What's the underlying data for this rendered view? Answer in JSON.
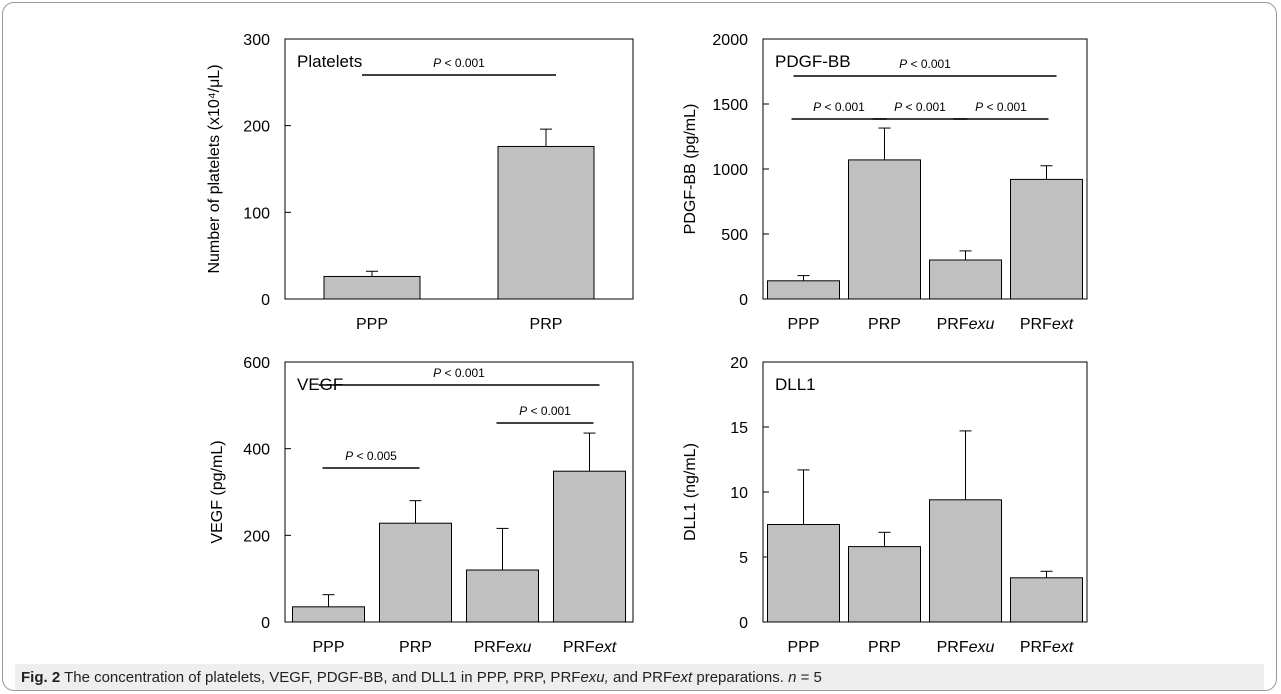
{
  "chart_data": [
    {
      "type": "bar",
      "panel_label": "Platelets",
      "ylabel": "Number of platelets (x10⁴/μL)",
      "categories": [
        "PPP",
        "PRP"
      ],
      "values": [
        26,
        176
      ],
      "errors": [
        6,
        20
      ],
      "ylim": [
        0,
        300
      ],
      "yticks": [
        0,
        100,
        200,
        300
      ],
      "grid": false,
      "bar_color": "#c0c0c0",
      "significance": [
        {
          "from": 0,
          "to": 1,
          "label": "P < 0.001"
        }
      ]
    },
    {
      "type": "bar",
      "panel_label": "PDGF-BB",
      "ylabel": "PDGF-BB (pg/mL)",
      "categories": [
        "PPP",
        "PRP",
        "PRFexu",
        "PRFext"
      ],
      "values": [
        140,
        1070,
        300,
        920
      ],
      "errors": [
        40,
        245,
        70,
        105
      ],
      "ylim": [
        0,
        2000
      ],
      "yticks": [
        0,
        500,
        1000,
        1500,
        2000
      ],
      "grid": false,
      "bar_color": "#c0c0c0",
      "significance": [
        {
          "from": 0,
          "to": 3,
          "label": "P < 0.001"
        },
        {
          "from": 0,
          "to": 1,
          "label": "P < 0.001"
        },
        {
          "from": 1,
          "to": 2,
          "label": "P < 0.001"
        },
        {
          "from": 2,
          "to": 3,
          "label": "P < 0.001"
        }
      ]
    },
    {
      "type": "bar",
      "panel_label": "VEGF",
      "ylabel": "VEGF (pg/mL)",
      "categories": [
        "PPP",
        "PRP",
        "PRFexu",
        "PRFext"
      ],
      "values": [
        35,
        228,
        120,
        348
      ],
      "errors": [
        28,
        52,
        96,
        88
      ],
      "ylim": [
        0,
        600
      ],
      "yticks": [
        0,
        200,
        400,
        600
      ],
      "grid": false,
      "bar_color": "#c0c0c0",
      "significance": [
        {
          "from": 0,
          "to": 3,
          "label": "P < 0.001"
        },
        {
          "from": 2,
          "to": 3,
          "label": "P < 0.001"
        },
        {
          "from": 0,
          "to": 1,
          "label": "P < 0.005"
        }
      ]
    },
    {
      "type": "bar",
      "panel_label": "DLL1",
      "ylabel": "DLL1 (ng/mL)",
      "categories": [
        "PPP",
        "PRP",
        "PRFexu",
        "PRFext"
      ],
      "values": [
        7.5,
        5.8,
        9.4,
        3.4
      ],
      "errors": [
        4.2,
        1.1,
        5.3,
        0.5
      ],
      "ylim": [
        0,
        20
      ],
      "yticks": [
        0,
        5,
        10,
        15,
        20
      ],
      "grid": false,
      "bar_color": "#c0c0c0",
      "significance": []
    }
  ],
  "caption": {
    "label": "Fig. 2",
    "text_1": " The concentration of platelets, VEGF, PDGF-BB, and DLL1 in PPP, PRP, PRF",
    "italic_1": "exu,",
    "text_2": " and PRF",
    "italic_2": "ext",
    "text_3": " preparations. ",
    "italic_3": "n",
    "text_4": " = 5"
  }
}
